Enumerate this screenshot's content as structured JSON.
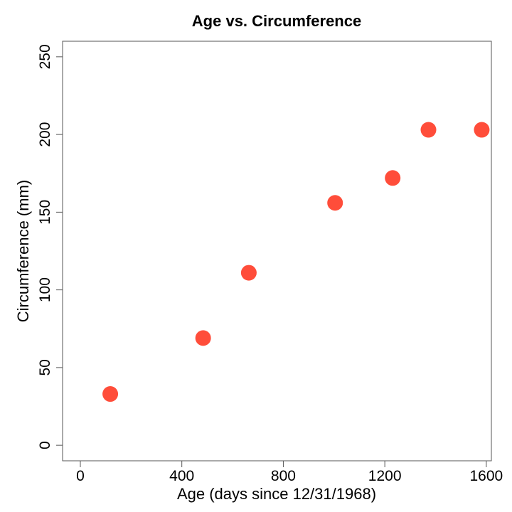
{
  "chart_data": {
    "type": "scatter",
    "title": "Age vs. Circumference",
    "xlabel": "Age (days since 12/31/1968)",
    "ylabel": "Circumference (mm)",
    "xlim": [
      -70,
      1620
    ],
    "ylim": [
      -10,
      260
    ],
    "xticks": [
      0,
      400,
      800,
      1200,
      1600
    ],
    "yticks": [
      0,
      50,
      100,
      150,
      200,
      250
    ],
    "grid": false,
    "legend": "none",
    "point_color": "#ff4d3a",
    "series": [
      {
        "x": [
          118,
          484,
          664,
          1004,
          1231,
          1372,
          1582
        ],
        "y": [
          33,
          69,
          111,
          156,
          172,
          203,
          203
        ]
      }
    ]
  }
}
